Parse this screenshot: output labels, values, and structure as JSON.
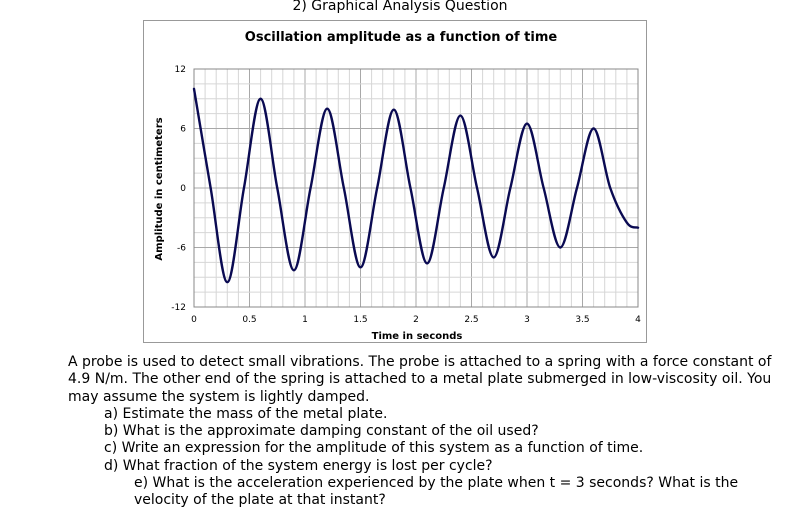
{
  "heading": "2) Graphical Analysis Question",
  "chart_data": {
    "type": "line",
    "title": "Oscillation amplitude as a function of time",
    "xlabel": "Time in seconds",
    "ylabel": "Amplitude in centimeters",
    "xlim": [
      0,
      4
    ],
    "ylim": [
      -12,
      12
    ],
    "x_ticks": [
      "0",
      "0.5",
      "1",
      "1.5",
      "2",
      "2.5",
      "3",
      "3.5",
      "4"
    ],
    "y_ticks": [
      "12",
      "6",
      "0",
      "-6",
      "-12"
    ],
    "grid": true,
    "legend": "none",
    "line_color": "#0a0a52",
    "series": [
      {
        "x": [
          0,
          0.15,
          0.3,
          0.45,
          0.6,
          0.75,
          0.9,
          1.05,
          1.2,
          1.35,
          1.5,
          1.65,
          1.8,
          1.95,
          2.1,
          2.25,
          2.4,
          2.55,
          2.7,
          2.85,
          3.0,
          3.15,
          3.3,
          3.45,
          3.6,
          3.75,
          3.9,
          4.0
        ],
        "y": [
          10,
          0,
          -9.5,
          0,
          9,
          0,
          -8.3,
          0,
          8,
          0,
          -8,
          0,
          7.9,
          0,
          -7.6,
          0,
          7.3,
          0,
          -7,
          0,
          6.5,
          0,
          -6,
          0,
          6,
          0,
          -3.5,
          -4
        ]
      }
    ]
  },
  "problem": {
    "intro": "A probe is used to detect small vibrations.  The probe is attached to a spring with a force constant of 4.9 N/m.  The other end of the spring is attached to a metal plate submerged in low-viscosity oil. You may assume the system is lightly damped.",
    "questions": [
      "a) Estimate the mass of the metal plate.",
      "b) What is the approximate damping constant of the oil used?",
      "c) Write an expression for the amplitude of this system as a function of time.",
      "d) What fraction of the system energy is lost per cycle?",
      "e) What is the acceleration experienced by the plate when t = 3 seconds? What is the velocity of the plate at that instant?"
    ]
  }
}
